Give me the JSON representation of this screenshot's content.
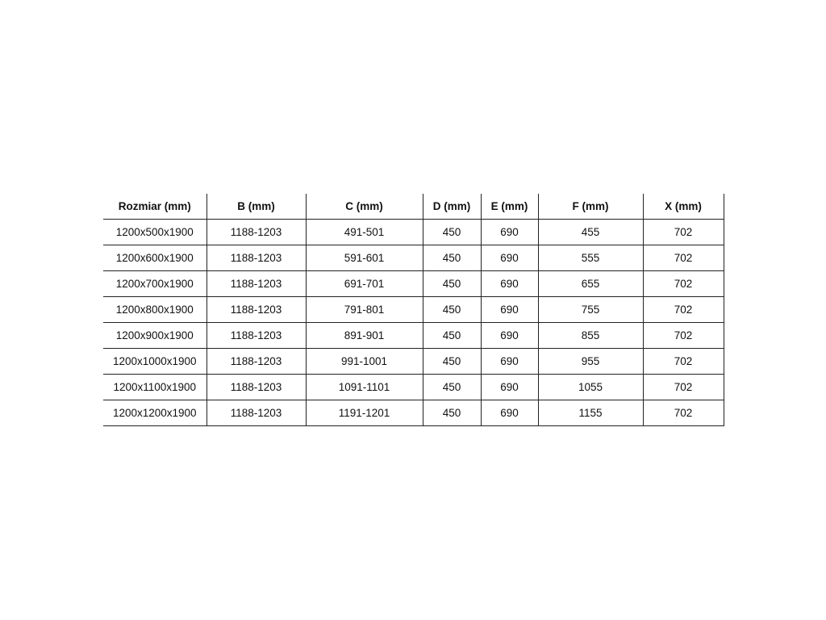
{
  "table": {
    "headers": [
      "Rozmiar (mm)",
      "B (mm)",
      "C (mm)",
      "D (mm)",
      "E (mm)",
      "F (mm)",
      "X (mm)"
    ],
    "rows": [
      [
        "1200x500x1900",
        "1188-1203",
        "491-501",
        "450",
        "690",
        "455",
        "702"
      ],
      [
        "1200x600x1900",
        "1188-1203",
        "591-601",
        "450",
        "690",
        "555",
        "702"
      ],
      [
        "1200x700x1900",
        "1188-1203",
        "691-701",
        "450",
        "690",
        "655",
        "702"
      ],
      [
        "1200x800x1900",
        "1188-1203",
        "791-801",
        "450",
        "690",
        "755",
        "702"
      ],
      [
        "1200x900x1900",
        "1188-1203",
        "891-901",
        "450",
        "690",
        "855",
        "702"
      ],
      [
        "1200x1000x1900",
        "1188-1203",
        "991-1001",
        "450",
        "690",
        "955",
        "702"
      ],
      [
        "1200x1100x1900",
        "1188-1203",
        "1091-1101",
        "450",
        "690",
        "1055",
        "702"
      ],
      [
        "1200x1200x1900",
        "1188-1203",
        "1191-1201",
        "450",
        "690",
        "1155",
        "702"
      ]
    ]
  }
}
